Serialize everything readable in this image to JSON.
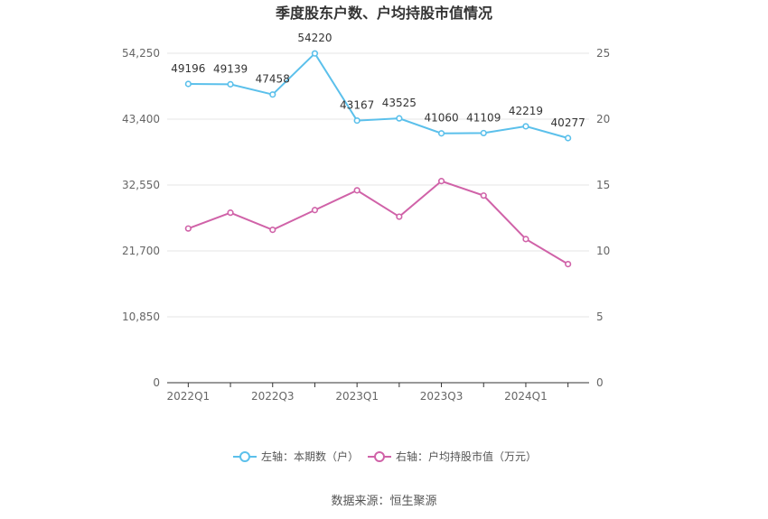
{
  "chart_data": {
    "type": "line",
    "title": "季度股东户数、户均持股市值情况",
    "categories": [
      "2022Q1",
      "2022Q2",
      "2022Q3",
      "2022Q4",
      "2023Q1",
      "2023Q2",
      "2023Q3",
      "2023Q4",
      "2024Q1",
      "2024Q2"
    ],
    "x_tick_labels": [
      "2022Q1",
      "2022Q3",
      "2023Q1",
      "2023Q3",
      "2024Q1"
    ],
    "y_left": {
      "ticks": [
        "0",
        "10,850",
        "21,700",
        "32,550",
        "43,400",
        "54,250"
      ],
      "range": [
        0,
        54250
      ]
    },
    "y_right": {
      "ticks": [
        "0",
        "5",
        "10",
        "15",
        "20",
        "25"
      ],
      "range": [
        0,
        25
      ]
    },
    "series": [
      {
        "name": "左轴：本期数（户）",
        "axis": "left",
        "color": "#5bc0eb",
        "values": [
          49196,
          49139,
          47458,
          54220,
          43167,
          43525,
          41060,
          41109,
          42219,
          40277
        ],
        "labels": [
          "49196",
          "49139",
          "47458",
          "54220",
          "43167",
          "43525",
          "41060",
          "41109",
          "42219",
          "40277"
        ]
      },
      {
        "name": "右轴：户均持股市值（万元）",
        "axis": "right",
        "color": "#d062a8",
        "values": [
          11.7,
          12.9,
          11.6,
          13.1,
          14.6,
          12.6,
          15.3,
          14.2,
          10.9,
          9.0
        ]
      }
    ],
    "legend_position": "bottom-center",
    "grid": true
  },
  "source": "数据来源：恒生聚源"
}
